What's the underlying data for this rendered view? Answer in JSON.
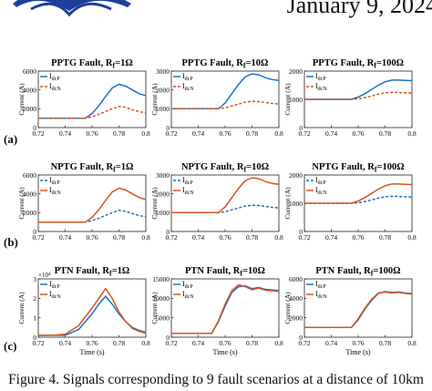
{
  "header": {
    "date": "January 9, 2024"
  },
  "caption": "Figure 4.   Signals corresponding to 9 fault scenarios at a distance of 10km",
  "colors": {
    "dcP": "#1f6fc9",
    "dcN": "#d9531e"
  },
  "rows": [
    {
      "label": "(a)"
    },
    {
      "label": "(b)"
    },
    {
      "label": "(c)"
    }
  ],
  "chart_data": [
    {
      "type": "line",
      "title": "PPTG Fault, R_f=1Ω",
      "ylabel": "Current (A)",
      "xlabel": "",
      "xlim": [
        0.72,
        0.8
      ],
      "ylim": [
        0,
        6000
      ],
      "xticks": [
        "0.72",
        "0.74",
        "0.76",
        "0.78",
        "0.8"
      ],
      "yticks": [
        "0",
        "2000",
        "4000",
        "6000"
      ],
      "exponent": "",
      "legend": [
        "I_dcP",
        "I_dcN"
      ],
      "series": [
        {
          "name": "I_dcP",
          "style": "solid",
          "x": [
            0.72,
            0.755,
            0.76,
            0.765,
            0.77,
            0.775,
            0.78,
            0.785,
            0.79,
            0.795,
            0.8
          ],
          "values": [
            1000,
            1000,
            1500,
            2300,
            3300,
            4200,
            4600,
            4400,
            4000,
            3600,
            3400
          ]
        },
        {
          "name": "I_dcN",
          "style": "dashed",
          "x": [
            0.72,
            0.755,
            0.76,
            0.765,
            0.77,
            0.775,
            0.78,
            0.785,
            0.79,
            0.795,
            0.8
          ],
          "values": [
            1000,
            1000,
            1150,
            1400,
            1700,
            2000,
            2250,
            2150,
            1900,
            1700,
            1550
          ]
        }
      ]
    },
    {
      "type": "line",
      "title": "PPTG Fault, R_f=10Ω",
      "ylabel": "Current (A)",
      "xlabel": "",
      "xlim": [
        0.72,
        0.8
      ],
      "ylim": [
        0,
        3000
      ],
      "xticks": [
        "0.72",
        "0.74",
        "0.76",
        "0.78",
        "0.8"
      ],
      "yticks": [
        "0",
        "1000",
        "2000",
        "3000"
      ],
      "exponent": "",
      "legend": [
        "I_dcP",
        "I_dcN"
      ],
      "series": [
        {
          "name": "I_dcP",
          "style": "solid",
          "x": [
            0.72,
            0.755,
            0.76,
            0.765,
            0.77,
            0.775,
            0.78,
            0.785,
            0.79,
            0.795,
            0.8
          ],
          "values": [
            1000,
            1000,
            1300,
            1800,
            2300,
            2700,
            2850,
            2800,
            2650,
            2550,
            2500
          ]
        },
        {
          "name": "I_dcN",
          "style": "dashed",
          "x": [
            0.72,
            0.755,
            0.76,
            0.765,
            0.77,
            0.775,
            0.78,
            0.785,
            0.79,
            0.795,
            0.8
          ],
          "values": [
            1000,
            1000,
            1050,
            1150,
            1250,
            1350,
            1400,
            1380,
            1330,
            1280,
            1250
          ]
        }
      ]
    },
    {
      "type": "line",
      "title": "PPTG Fault, R_f=100Ω",
      "ylabel": "Current (A)",
      "xlabel": "",
      "xlim": [
        0.72,
        0.8
      ],
      "ylim": [
        0,
        2000
      ],
      "xticks": [
        "0.72",
        "0.74",
        "0.76",
        "0.78",
        "0.8"
      ],
      "yticks": [
        "0",
        "1000",
        "2000"
      ],
      "exponent": "",
      "legend": [
        "I_dcP",
        "I_dcN"
      ],
      "series": [
        {
          "name": "I_dcP",
          "style": "solid",
          "x": [
            0.72,
            0.755,
            0.76,
            0.765,
            0.77,
            0.775,
            0.78,
            0.785,
            0.79,
            0.795,
            0.8
          ],
          "values": [
            1000,
            1000,
            1080,
            1200,
            1350,
            1500,
            1620,
            1680,
            1680,
            1670,
            1660
          ]
        },
        {
          "name": "I_dcN",
          "style": "dashed",
          "x": [
            0.72,
            0.755,
            0.76,
            0.765,
            0.77,
            0.775,
            0.78,
            0.785,
            0.79,
            0.795,
            0.8
          ],
          "values": [
            1000,
            1000,
            1020,
            1060,
            1120,
            1180,
            1230,
            1250,
            1240,
            1230,
            1220
          ]
        }
      ]
    },
    {
      "type": "line",
      "title": "NPTG Fault, R_f=1Ω",
      "ylabel": "Current (A)",
      "xlabel": "",
      "xlim": [
        0.72,
        0.8
      ],
      "ylim": [
        0,
        6000
      ],
      "xticks": [
        "0.72",
        "0.74",
        "0.76",
        "0.78",
        "0.8"
      ],
      "yticks": [
        "0",
        "2000",
        "4000",
        "6000"
      ],
      "exponent": "",
      "legend": [
        "I_dcP",
        "I_dcN"
      ],
      "series": [
        {
          "name": "I_dcP",
          "style": "dashed",
          "x": [
            0.72,
            0.755,
            0.76,
            0.765,
            0.77,
            0.775,
            0.78,
            0.785,
            0.79,
            0.795,
            0.8
          ],
          "values": [
            1000,
            1000,
            1150,
            1400,
            1700,
            2000,
            2250,
            2150,
            1900,
            1700,
            1550
          ]
        },
        {
          "name": "I_dcN",
          "style": "solid",
          "x": [
            0.72,
            0.755,
            0.76,
            0.765,
            0.77,
            0.775,
            0.78,
            0.785,
            0.79,
            0.795,
            0.8
          ],
          "values": [
            1000,
            1000,
            1500,
            2300,
            3300,
            4200,
            4600,
            4400,
            4000,
            3600,
            3400
          ]
        }
      ]
    },
    {
      "type": "line",
      "title": "NPTG Fault, R_f=10Ω",
      "ylabel": "Current (A)",
      "xlabel": "",
      "xlim": [
        0.72,
        0.8
      ],
      "ylim": [
        0,
        3000
      ],
      "xticks": [
        "0.72",
        "0.74",
        "0.76",
        "0.78",
        "0.8"
      ],
      "yticks": [
        "0",
        "1000",
        "2000",
        "3000"
      ],
      "exponent": "",
      "legend": [
        "I_dcP",
        "I_dcN"
      ],
      "series": [
        {
          "name": "I_dcP",
          "style": "dashed",
          "x": [
            0.72,
            0.755,
            0.76,
            0.765,
            0.77,
            0.775,
            0.78,
            0.785,
            0.79,
            0.795,
            0.8
          ],
          "values": [
            1000,
            1000,
            1050,
            1150,
            1250,
            1350,
            1400,
            1380,
            1330,
            1280,
            1250
          ]
        },
        {
          "name": "I_dcN",
          "style": "solid",
          "x": [
            0.72,
            0.755,
            0.76,
            0.765,
            0.77,
            0.775,
            0.78,
            0.785,
            0.79,
            0.795,
            0.8
          ],
          "values": [
            1000,
            1000,
            1300,
            1800,
            2300,
            2700,
            2850,
            2800,
            2650,
            2550,
            2500
          ]
        }
      ]
    },
    {
      "type": "line",
      "title": "NPTG Fault, R_f=100Ω",
      "ylabel": "Current (A)",
      "xlabel": "",
      "xlim": [
        0.72,
        0.8
      ],
      "ylim": [
        0,
        2000
      ],
      "xticks": [
        "0.72",
        "0.74",
        "0.76",
        "0.78",
        "0.8"
      ],
      "yticks": [
        "0",
        "1000",
        "2000"
      ],
      "exponent": "",
      "legend": [
        "I_dcP",
        "I_dcN"
      ],
      "series": [
        {
          "name": "I_dcP",
          "style": "dashed",
          "x": [
            0.72,
            0.755,
            0.76,
            0.765,
            0.77,
            0.775,
            0.78,
            0.785,
            0.79,
            0.795,
            0.8
          ],
          "values": [
            1000,
            1000,
            1020,
            1060,
            1120,
            1180,
            1230,
            1250,
            1240,
            1230,
            1220
          ]
        },
        {
          "name": "I_dcN",
          "style": "solid",
          "x": [
            0.72,
            0.755,
            0.76,
            0.765,
            0.77,
            0.775,
            0.78,
            0.785,
            0.79,
            0.795,
            0.8
          ],
          "values": [
            1000,
            1000,
            1080,
            1200,
            1350,
            1500,
            1620,
            1680,
            1680,
            1670,
            1660
          ]
        }
      ]
    },
    {
      "type": "line",
      "title": "PTN Fault, R_f=1Ω",
      "ylabel": "Current (A)",
      "xlabel": "Time (s)",
      "xlim": [
        0.72,
        0.8
      ],
      "ylim": [
        0,
        30000
      ],
      "xticks": [
        "0.72",
        "0.74",
        "0.76",
        "0.78",
        "0.8"
      ],
      "yticks": [
        "0",
        "1",
        "2",
        "3"
      ],
      "exponent": "×10⁴",
      "legend": [
        "I_dcP",
        "I_dcN"
      ],
      "series": [
        {
          "name": "I_dcP",
          "style": "solid",
          "x": [
            0.72,
            0.73,
            0.74,
            0.75,
            0.76,
            0.765,
            0.77,
            0.775,
            0.78,
            0.785,
            0.79,
            0.795,
            0.8
          ],
          "values": [
            1000,
            1000,
            1000,
            4000,
            12000,
            17000,
            21000,
            17000,
            12000,
            8000,
            5000,
            3500,
            2500
          ]
        },
        {
          "name": "I_dcN",
          "style": "solid",
          "x": [
            0.72,
            0.73,
            0.74,
            0.75,
            0.76,
            0.765,
            0.77,
            0.775,
            0.78,
            0.785,
            0.79,
            0.795,
            0.8
          ],
          "values": [
            1000,
            1000,
            1500,
            6000,
            15000,
            20000,
            25000,
            20000,
            13000,
            8000,
            4500,
            3000,
            2000
          ]
        }
      ]
    },
    {
      "type": "line",
      "title": "PTN Fault, R_f=10Ω",
      "ylabel": "Current (A)",
      "xlabel": "Time (s)",
      "xlim": [
        0.72,
        0.8
      ],
      "ylim": [
        0,
        15000
      ],
      "xticks": [
        "0.72",
        "0.74",
        "0.76",
        "0.78",
        "0.8"
      ],
      "yticks": [
        "0",
        "5000",
        "10000",
        "15000"
      ],
      "exponent": "",
      "legend": [
        "I_dcP",
        "I_dcN"
      ],
      "series": [
        {
          "name": "I_dcP",
          "style": "solid",
          "x": [
            0.72,
            0.75,
            0.755,
            0.76,
            0.765,
            0.77,
            0.775,
            0.78,
            0.785,
            0.79,
            0.8
          ],
          "values": [
            1000,
            1000,
            4000,
            8000,
            11500,
            13000,
            13200,
            12500,
            12800,
            12300,
            12000
          ]
        },
        {
          "name": "I_dcN",
          "style": "solid",
          "x": [
            0.72,
            0.75,
            0.755,
            0.76,
            0.765,
            0.77,
            0.775,
            0.78,
            0.785,
            0.79,
            0.8
          ],
          "values": [
            1000,
            1000,
            4200,
            8500,
            12000,
            13500,
            13000,
            12200,
            12600,
            12100,
            11800
          ]
        }
      ]
    },
    {
      "type": "line",
      "title": "PTN Fault, R_f=100Ω",
      "ylabel": "Current (A)",
      "xlabel": "Time (s)",
      "xlim": [
        0.72,
        0.8
      ],
      "ylim": [
        0,
        6000
      ],
      "xticks": [
        "0.72",
        "0.74",
        "0.76",
        "0.78",
        "0.8"
      ],
      "yticks": [
        "0",
        "2000",
        "4000",
        "6000"
      ],
      "exponent": "",
      "legend": [
        "I_dcP",
        "I_dcN"
      ],
      "series": [
        {
          "name": "I_dcP",
          "style": "solid",
          "x": [
            0.72,
            0.755,
            0.76,
            0.765,
            0.77,
            0.775,
            0.78,
            0.785,
            0.79,
            0.795,
            0.8
          ],
          "values": [
            1000,
            1000,
            1800,
            2900,
            3800,
            4500,
            4700,
            4600,
            4650,
            4550,
            4500
          ]
        },
        {
          "name": "I_dcN",
          "style": "solid",
          "x": [
            0.72,
            0.755,
            0.76,
            0.765,
            0.77,
            0.775,
            0.78,
            0.785,
            0.79,
            0.795,
            0.8
          ],
          "values": [
            1000,
            1000,
            1900,
            3000,
            3900,
            4550,
            4650,
            4550,
            4600,
            4500,
            4450
          ]
        }
      ]
    }
  ]
}
